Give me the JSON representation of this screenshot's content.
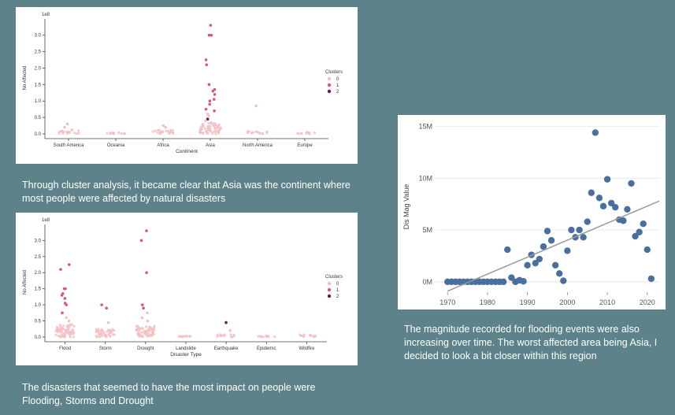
{
  "colors": {
    "background": "#5e828a",
    "cluster_0": "#f2c1c3",
    "cluster_1": "#d9587a",
    "cluster_2": "#6a1a5c",
    "line_points": "#4a6f9f",
    "trend": "#999999"
  },
  "captions": {
    "continent": "Through cluster analysis, it became clear that Asia was the continent where most people were affected by natural disasters",
    "disaster": "The disasters that seemed to have the most impact on people were Flooding, Storms and Drought",
    "flood": "The magnitude recorded for flooding events were also increasing over time. The worst affected area being Asia, I decided to look a bit closer within this region"
  },
  "chart_data": [
    {
      "type": "scatter",
      "title": "",
      "xlabel": "Continent",
      "ylabel": "No Affected",
      "y_scale_label": "1e8",
      "categories": [
        "South America",
        "Oceania",
        "Africa",
        "Asia",
        "North America",
        "Europe"
      ],
      "yticks": [
        "0.0",
        "0.5",
        "1.0",
        "1.5",
        "2.0",
        "2.5",
        "3.0"
      ],
      "ylim": [
        0,
        3.4
      ],
      "legend": {
        "title": "Clusters",
        "entries": [
          "0",
          "1",
          "2"
        ],
        "position": "right"
      },
      "points": [
        {
          "category": "South America",
          "cluster": 0,
          "y": 0.2
        },
        {
          "category": "South America",
          "cluster": 0,
          "y": 0.3
        },
        {
          "category": "South America",
          "cluster": 0,
          "y": 0.12
        },
        {
          "category": "Africa",
          "cluster": 0,
          "y": 0.2
        },
        {
          "category": "Africa",
          "cluster": 0,
          "y": 0.25
        },
        {
          "category": "Asia",
          "cluster": 1,
          "y": 3.3
        },
        {
          "category": "Asia",
          "cluster": 1,
          "y": 3.0
        },
        {
          "category": "Asia",
          "cluster": 1,
          "y": 3.0
        },
        {
          "category": "Asia",
          "cluster": 1,
          "y": 2.25
        },
        {
          "category": "Asia",
          "cluster": 1,
          "y": 2.1
        },
        {
          "category": "Asia",
          "cluster": 1,
          "y": 1.5
        },
        {
          "category": "Asia",
          "cluster": 1,
          "y": 1.35
        },
        {
          "category": "Asia",
          "cluster": 1,
          "y": 1.3
        },
        {
          "category": "Asia",
          "cluster": 1,
          "y": 1.2
        },
        {
          "category": "Asia",
          "cluster": 1,
          "y": 1.0
        },
        {
          "category": "Asia",
          "cluster": 1,
          "y": 1.05
        },
        {
          "category": "Asia",
          "cluster": 1,
          "y": 0.9
        },
        {
          "category": "Asia",
          "cluster": 1,
          "y": 0.75
        },
        {
          "category": "Asia",
          "cluster": 1,
          "y": 0.7
        },
        {
          "category": "Asia",
          "cluster": 0,
          "y": 0.55
        },
        {
          "category": "Asia",
          "cluster": 0,
          "y": 0.6
        },
        {
          "category": "Asia",
          "cluster": 2,
          "y": 0.45
        },
        {
          "category": "Asia",
          "cluster": 0,
          "y": 0.4
        },
        {
          "category": "North America",
          "cluster": 0,
          "y": 0.85
        }
      ],
      "baseline_clusters": [
        {
          "category": "South America",
          "max": 0.1
        },
        {
          "category": "Oceania",
          "max": 0.05
        },
        {
          "category": "Africa",
          "max": 0.12
        },
        {
          "category": "Asia",
          "max": 0.35
        },
        {
          "category": "North America",
          "max": 0.08
        },
        {
          "category": "Europe",
          "max": 0.05
        }
      ]
    },
    {
      "type": "scatter",
      "title": "",
      "xlabel": "Disaster Type",
      "ylabel": "No Affected",
      "y_scale_label": "1e8",
      "categories": [
        "Flood",
        "Storm",
        "Drought",
        "Landslide",
        "Earthquake",
        "Epidemic",
        "Wildfire"
      ],
      "yticks": [
        "0.0",
        "0.5",
        "1.0",
        "1.5",
        "2.0",
        "2.5",
        "3.0"
      ],
      "ylim": [
        0,
        3.4
      ],
      "legend": {
        "title": "Clusters",
        "entries": [
          "0",
          "1",
          "2"
        ],
        "position": "right"
      },
      "points": [
        {
          "category": "Flood",
          "cluster": 1,
          "y": 2.25
        },
        {
          "category": "Flood",
          "cluster": 1,
          "y": 2.1
        },
        {
          "category": "Flood",
          "cluster": 1,
          "y": 1.5
        },
        {
          "category": "Flood",
          "cluster": 1,
          "y": 1.5
        },
        {
          "category": "Flood",
          "cluster": 1,
          "y": 1.35
        },
        {
          "category": "Flood",
          "cluster": 1,
          "y": 1.3
        },
        {
          "category": "Flood",
          "cluster": 1,
          "y": 1.2
        },
        {
          "category": "Flood",
          "cluster": 1,
          "y": 1.0
        },
        {
          "category": "Flood",
          "cluster": 1,
          "y": 1.05
        },
        {
          "category": "Flood",
          "cluster": 1,
          "y": 0.75
        },
        {
          "category": "Flood",
          "cluster": 0,
          "y": 0.6
        },
        {
          "category": "Flood",
          "cluster": 0,
          "y": 0.5
        },
        {
          "category": "Storm",
          "cluster": 1,
          "y": 1.0
        },
        {
          "category": "Storm",
          "cluster": 1,
          "y": 0.9
        },
        {
          "category": "Storm",
          "cluster": 0,
          "y": 0.45
        },
        {
          "category": "Drought",
          "cluster": 1,
          "y": 3.3
        },
        {
          "category": "Drought",
          "cluster": 1,
          "y": 3.0
        },
        {
          "category": "Drought",
          "cluster": 1,
          "y": 2.0
        },
        {
          "category": "Drought",
          "cluster": 1,
          "y": 1.0
        },
        {
          "category": "Drought",
          "cluster": 1,
          "y": 0.9
        },
        {
          "category": "Drought",
          "cluster": 0,
          "y": 0.75
        },
        {
          "category": "Drought",
          "cluster": 0,
          "y": 0.6
        },
        {
          "category": "Drought",
          "cluster": 0,
          "y": 0.5
        },
        {
          "category": "Earthquake",
          "cluster": 2,
          "y": 0.45
        },
        {
          "category": "Earthquake",
          "cluster": 0,
          "y": 0.2
        }
      ],
      "baseline_clusters": [
        {
          "category": "Flood",
          "max": 0.4
        },
        {
          "category": "Storm",
          "max": 0.25
        },
        {
          "category": "Drought",
          "max": 0.35
        },
        {
          "category": "Landslide",
          "max": 0.03
        },
        {
          "category": "Earthquake",
          "max": 0.08
        },
        {
          "category": "Epidemic",
          "max": 0.05
        },
        {
          "category": "Wildfire",
          "max": 0.08
        }
      ]
    },
    {
      "type": "scatter",
      "title": "",
      "xlabel": "",
      "ylabel": "Dis Mag Value",
      "xlim": [
        1967,
        2023
      ],
      "ylim": [
        -1000000,
        15500000
      ],
      "xticks": [
        1970,
        1980,
        1990,
        2000,
        2010,
        2020
      ],
      "yticks": [
        {
          "value": 0,
          "label": "0M"
        },
        {
          "value": 5000000,
          "label": "5M"
        },
        {
          "value": 10000000,
          "label": "10M"
        },
        {
          "value": 15000000,
          "label": "15M"
        }
      ],
      "trend_line": {
        "x": [
          1970,
          2023
        ],
        "y": [
          -900000,
          7800000
        ]
      },
      "x": [
        1970,
        1971,
        1972,
        1973,
        1974,
        1975,
        1976,
        1977,
        1978,
        1979,
        1980,
        1981,
        1982,
        1983,
        1984,
        1985,
        1986,
        1987,
        1988,
        1989,
        1990,
        1991,
        1992,
        1993,
        1994,
        1995,
        1996,
        1997,
        1998,
        1999,
        2000,
        2001,
        2002,
        2003,
        2004,
        2005,
        2006,
        2007,
        2008,
        2009,
        2010,
        2011,
        2012,
        2013,
        2014,
        2015,
        2016,
        2017,
        2018,
        2019,
        2020,
        2021
      ],
      "y": [
        0,
        0,
        0,
        0,
        0,
        0,
        0,
        0,
        0,
        0,
        0,
        0,
        0,
        0,
        0,
        3100000,
        400000,
        0,
        150000,
        50000,
        1600000,
        2600000,
        1800000,
        2200000,
        3400000,
        4900000,
        4000000,
        1600000,
        800000,
        100000,
        3000000,
        5000000,
        4300000,
        5000000,
        4300000,
        5800000,
        8600000,
        14400000,
        8100000,
        7300000,
        9900000,
        7600000,
        7200000,
        6000000,
        5900000,
        7000000,
        9500000,
        4400000,
        4800000,
        5600000,
        3100000,
        300000
      ]
    }
  ]
}
